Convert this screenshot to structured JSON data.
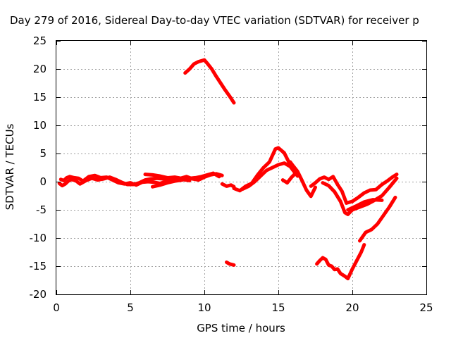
{
  "chart_data": {
    "type": "line",
    "title": "Day 279 of 2016, Sidereal Day-to-day VTEC variation (SDTVAR) for receiver p",
    "xlabel": "GPS time / hours",
    "ylabel": "SDTVAR / TECUs",
    "xlim": [
      0,
      25
    ],
    "ylim": [
      -20,
      25
    ],
    "x_ticks": [
      0,
      5,
      10,
      15,
      20,
      25
    ],
    "y_ticks": [
      -20,
      -15,
      -10,
      -5,
      0,
      5,
      10,
      15,
      20,
      25
    ],
    "grid": true,
    "color": "#ff0000",
    "series": [
      {
        "x": [
          0.2,
          0.4,
          0.6,
          0.8,
          1.0,
          1.3,
          1.6,
          2.0,
          2.4,
          2.8,
          3.2,
          3.6,
          4.0,
          4.4,
          4.8,
          5.2,
          5.6,
          6.0,
          6.4,
          6.8,
          7.2,
          7.6,
          8.0,
          8.4,
          8.8,
          9.2,
          9.6,
          10.0,
          10.4,
          10.8,
          11.2
        ],
        "y": [
          -0.3,
          -0.7,
          -0.4,
          0.1,
          0.4,
          0.2,
          -0.4,
          0.2,
          0.6,
          0.3,
          0.5,
          0.8,
          0.4,
          -0.1,
          -0.5,
          -0.5,
          -0.2,
          0.3,
          0.5,
          0.6,
          0.5,
          0.7,
          0.8,
          0.6,
          0.9,
          0.5,
          0.3,
          0.8,
          1.2,
          1.4,
          1.1
        ]
      },
      {
        "x": [
          0.3,
          0.5,
          0.7,
          0.9,
          1.2,
          1.5,
          1.8,
          2.2,
          2.6,
          3.0,
          3.4,
          3.8,
          4.2,
          4.6,
          5.0,
          5.4,
          5.8,
          6.2,
          6.6,
          7.0,
          7.4,
          7.8,
          8.2,
          8.6,
          9.0,
          9.4,
          9.8,
          10.2,
          10.6,
          11.0
        ],
        "y": [
          0.4,
          0.2,
          0.7,
          0.9,
          0.7,
          0.6,
          0.1,
          0.9,
          1.1,
          0.7,
          0.8,
          0.3,
          -0.2,
          -0.4,
          -0.2,
          -0.6,
          -0.1,
          0.0,
          -0.1,
          -0.3,
          0.0,
          0.4,
          0.7,
          0.5,
          0.6,
          0.7,
          0.9,
          1.2,
          1.5,
          0.9
        ]
      },
      {
        "x": [
          6.0,
          6.5,
          7.0,
          7.5,
          8.0,
          8.5,
          9.0
        ],
        "y": [
          1.3,
          1.2,
          1.0,
          0.7,
          0.5,
          0.4,
          0.2
        ]
      },
      {
        "x": [
          6.5,
          7.0,
          7.5,
          8.0,
          8.5
        ],
        "y": [
          -0.9,
          -0.6,
          -0.2,
          0.1,
          0.3
        ]
      },
      {
        "x": [
          11.2,
          11.5,
          11.8,
          12.0
        ],
        "y": [
          -0.4,
          -0.8,
          -0.6,
          -0.9
        ]
      },
      {
        "x": [
          12.0,
          12.4,
          12.8,
          13.2,
          13.6,
          14.0,
          14.4,
          14.8,
          15.0,
          15.4,
          15.8,
          16.2
        ],
        "y": [
          -1.2,
          -1.6,
          -0.8,
          -0.3,
          1.2,
          2.5,
          3.5,
          5.8,
          6.0,
          5.1,
          3.0,
          1.5
        ]
      },
      {
        "x": [
          12.6,
          13.0,
          13.4,
          13.8,
          14.2,
          14.6,
          15.0,
          15.4,
          15.8,
          16.0,
          16.3
        ],
        "y": [
          -1.3,
          -0.8,
          0.0,
          1.0,
          2.0,
          2.5,
          3.0,
          3.3,
          2.7,
          2.0,
          1.0
        ]
      },
      {
        "x": [
          15.8,
          16.0,
          16.3,
          16.6,
          16.9,
          17.2,
          17.5
        ],
        "y": [
          3.5,
          2.8,
          1.8,
          0.2,
          -1.5,
          -2.6,
          -1.0
        ]
      },
      {
        "x": [
          15.3,
          15.6,
          15.9,
          16.2
        ],
        "y": [
          0.3,
          -0.2,
          0.8,
          1.6
        ]
      },
      {
        "x": [
          17.2,
          17.5,
          17.8,
          18.1,
          18.4,
          18.7,
          19.0,
          19.3,
          19.6,
          20.0,
          20.4,
          20.8,
          21.2,
          21.6,
          22.0,
          22.4,
          22.7,
          23.0
        ],
        "y": [
          -0.8,
          -0.2,
          0.5,
          0.8,
          0.4,
          0.9,
          -0.5,
          -1.7,
          -3.8,
          -3.5,
          -2.8,
          -2.0,
          -1.5,
          -1.4,
          -0.5,
          0.2,
          0.8,
          1.3
        ]
      },
      {
        "x": [
          18.0,
          18.4,
          18.8,
          19.2,
          19.5,
          19.7,
          20.0,
          20.5,
          21.0,
          21.5,
          22.0,
          22.5,
          23.0
        ],
        "y": [
          -0.2,
          -0.7,
          -1.8,
          -3.5,
          -5.5,
          -5.8,
          -5.0,
          -4.5,
          -4.0,
          -3.3,
          -2.5,
          -1.0,
          0.6
        ]
      },
      {
        "x": [
          19.7,
          20.2,
          20.8,
          21.4,
          22.0
        ],
        "y": [
          -5.0,
          -4.4,
          -3.6,
          -3.2,
          -3.3
        ]
      },
      {
        "x": [
          8.7,
          9.0,
          9.3,
          9.6,
          10.0,
          10.2,
          10.5,
          10.8,
          11.1,
          11.4,
          11.7,
          12.0
        ],
        "y": [
          19.3,
          20.0,
          20.9,
          21.3,
          21.6,
          21.0,
          20.0,
          18.7,
          17.5,
          16.3,
          15.2,
          14.0
        ]
      },
      {
        "x": [
          11.5,
          11.7,
          12.0
        ],
        "y": [
          -14.3,
          -14.6,
          -14.8
        ]
      },
      {
        "x": [
          17.6,
          17.8,
          18.0,
          18.2,
          18.4,
          18.6,
          18.8,
          19.0,
          19.2,
          19.5,
          19.7,
          20.0,
          20.3,
          20.6,
          20.8
        ],
        "y": [
          -14.6,
          -14.0,
          -13.5,
          -13.8,
          -14.8,
          -15.0,
          -15.6,
          -15.5,
          -16.3,
          -16.8,
          -17.2,
          -15.5,
          -14.0,
          -12.5,
          -11.2
        ]
      },
      {
        "x": [
          20.5,
          20.9,
          21.3,
          21.7,
          22.1,
          22.5,
          22.9
        ],
        "y": [
          -10.5,
          -9.0,
          -8.5,
          -7.5,
          -6.0,
          -4.5,
          -2.8
        ]
      }
    ]
  }
}
